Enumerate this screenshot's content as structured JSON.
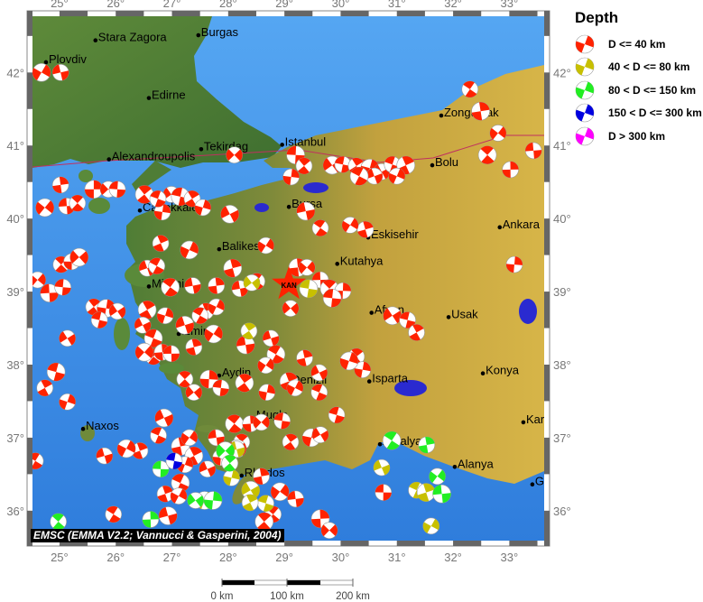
{
  "legend": {
    "title": "Depth",
    "items": [
      {
        "label": "D <= 40 km",
        "color": "#ff2200"
      },
      {
        "label": "40 < D <= 80 km",
        "color": "#c8c000"
      },
      {
        "label": "80 < D <= 150 km",
        "color": "#22ee22"
      },
      {
        "label": "150 < D <= 300 km",
        "color": "#0000e0"
      },
      {
        "label": "D > 300 km",
        "color": "#ff00ff"
      }
    ]
  },
  "credit": "EMSC (EMMA V2.2; Vannucci & Gasperini, 2004)",
  "scale_bar": {
    "labels": [
      "0 km",
      "100 km",
      "200 km"
    ]
  },
  "axes": {
    "lon_ticks": [
      {
        "value": 25,
        "label": "25°"
      },
      {
        "value": 26,
        "label": "26°"
      },
      {
        "value": 27,
        "label": "27°"
      },
      {
        "value": 28,
        "label": "28°"
      },
      {
        "value": 29,
        "label": "29°"
      },
      {
        "value": 30,
        "label": "30°"
      },
      {
        "value": 31,
        "label": "31°"
      },
      {
        "value": 32,
        "label": "32°"
      },
      {
        "value": 33,
        "label": "33°"
      }
    ],
    "lat_ticks": [
      {
        "value": 36,
        "label": "36°"
      },
      {
        "value": 37,
        "label": "37°"
      },
      {
        "value": 38,
        "label": "38°"
      },
      {
        "value": 39,
        "label": "39°"
      },
      {
        "value": 40,
        "label": "40°"
      },
      {
        "value": 41,
        "label": "41°"
      },
      {
        "value": 42,
        "label": "42°"
      }
    ]
  },
  "map": {
    "lon_range": [
      24.52,
      33.62
    ],
    "lat_range": [
      35.59,
      42.77
    ],
    "colors": {
      "sea": "#3d8ee8",
      "lowland": "#4f7d36",
      "highland": "#c9a63e",
      "epicenter": "#ff2200"
    },
    "epicenter": {
      "label": "KAN",
      "lon": 29.08,
      "lat": 39.1
    },
    "cities": [
      {
        "name": "Stara Zagora",
        "lon": 25.64,
        "lat": 42.44
      },
      {
        "name": "Burgas",
        "lon": 27.47,
        "lat": 42.51
      },
      {
        "name": "Plovdiv",
        "lon": 24.76,
        "lat": 42.14
      },
      {
        "name": "Edirne",
        "lon": 26.59,
        "lat": 41.65
      },
      {
        "name": "Zonguldak",
        "lon": 31.79,
        "lat": 41.41
      },
      {
        "name": "Tekirdag",
        "lon": 27.52,
        "lat": 40.95
      },
      {
        "name": "Istanbul",
        "lon": 28.96,
        "lat": 41.01
      },
      {
        "name": "Alexandroupolis",
        "lon": 25.88,
        "lat": 40.81
      },
      {
        "name": "Bolu",
        "lon": 31.63,
        "lat": 40.73
      },
      {
        "name": "Canakkale",
        "lon": 26.43,
        "lat": 40.11
      },
      {
        "name": "Bursa",
        "lon": 29.08,
        "lat": 40.16
      },
      {
        "name": "Ankara",
        "lon": 32.83,
        "lat": 39.88
      },
      {
        "name": "Eskisehir",
        "lon": 30.49,
        "lat": 39.74
      },
      {
        "name": "Balikesir",
        "lon": 27.84,
        "lat": 39.58
      },
      {
        "name": "Kutahya",
        "lon": 29.94,
        "lat": 39.38
      },
      {
        "name": "Mitilini",
        "lon": 26.59,
        "lat": 39.07
      },
      {
        "name": "Afyon",
        "lon": 30.55,
        "lat": 38.71
      },
      {
        "name": "Usak",
        "lon": 31.92,
        "lat": 38.65
      },
      {
        "name": "Izmir",
        "lon": 27.12,
        "lat": 38.42
      },
      {
        "name": "Aydin",
        "lon": 27.84,
        "lat": 37.85
      },
      {
        "name": "Konya",
        "lon": 32.53,
        "lat": 37.88
      },
      {
        "name": "Denizli",
        "lon": 29.08,
        "lat": 37.75
      },
      {
        "name": "Isparta",
        "lon": 30.51,
        "lat": 37.77
      },
      {
        "name": "Naxos",
        "lon": 25.42,
        "lat": 37.12
      },
      {
        "name": "Mugla",
        "lon": 28.45,
        "lat": 37.27
      },
      {
        "name": "Kar",
        "lon": 33.25,
        "lat": 37.21
      },
      {
        "name": "Antalya",
        "lon": 30.7,
        "lat": 36.91
      },
      {
        "name": "Alanya",
        "lon": 32.03,
        "lat": 36.6
      },
      {
        "name": "Rhodos",
        "lon": 28.24,
        "lat": 36.48
      },
      {
        "name": "G",
        "lon": 33.41,
        "lat": 36.36
      }
    ],
    "events": [
      [
        24.68,
        42.0,
        0
      ],
      [
        25.02,
        42.0,
        0
      ],
      [
        32.3,
        41.77,
        0
      ],
      [
        32.49,
        41.47,
        0
      ],
      [
        32.8,
        41.17,
        0
      ],
      [
        33.43,
        40.93,
        0
      ],
      [
        32.61,
        40.87,
        0
      ],
      [
        33.02,
        40.67,
        0
      ],
      [
        28.11,
        40.87,
        0
      ],
      [
        29.2,
        40.87,
        0
      ],
      [
        29.35,
        40.72,
        0
      ],
      [
        29.12,
        40.57,
        0
      ],
      [
        29.85,
        40.73,
        0
      ],
      [
        30.04,
        40.74,
        0
      ],
      [
        30.28,
        40.72,
        0
      ],
      [
        30.52,
        40.69,
        0
      ],
      [
        30.73,
        40.64,
        0
      ],
      [
        30.92,
        40.74,
        0
      ],
      [
        31.16,
        40.73,
        0
      ],
      [
        31.0,
        40.58,
        0
      ],
      [
        30.6,
        40.58,
        0
      ],
      [
        30.33,
        40.58,
        0
      ],
      [
        30.44,
        39.85,
        0
      ],
      [
        30.17,
        39.91,
        0
      ],
      [
        29.38,
        40.1,
        0
      ],
      [
        29.64,
        39.87,
        0
      ],
      [
        25.02,
        40.46,
        0
      ],
      [
        24.74,
        40.15,
        0
      ],
      [
        25.13,
        40.17,
        0
      ],
      [
        25.32,
        40.21,
        0
      ],
      [
        25.61,
        40.4,
        0
      ],
      [
        25.87,
        40.4,
        0
      ],
      [
        26.03,
        40.4,
        0
      ],
      [
        26.51,
        40.33,
        0
      ],
      [
        26.83,
        40.09,
        0
      ],
      [
        26.99,
        40.33,
        0
      ],
      [
        27.15,
        40.3,
        0
      ],
      [
        27.36,
        40.27,
        0
      ],
      [
        27.55,
        40.15,
        0
      ],
      [
        28.03,
        40.06,
        0
      ],
      [
        26.75,
        40.27,
        0
      ],
      [
        26.8,
        39.66,
        0
      ],
      [
        27.31,
        39.57,
        0
      ],
      [
        26.56,
        39.32,
        0
      ],
      [
        26.73,
        39.35,
        0
      ],
      [
        28.08,
        39.32,
        0
      ],
      [
        28.67,
        39.63,
        0
      ],
      [
        27.37,
        39.08,
        0
      ],
      [
        26.97,
        39.06,
        0
      ],
      [
        27.79,
        39.08,
        0
      ],
      [
        24.61,
        39.16,
        0
      ],
      [
        24.82,
        38.98,
        0
      ],
      [
        25.03,
        39.37,
        0
      ],
      [
        25.22,
        39.41,
        0
      ],
      [
        25.35,
        39.47,
        0
      ],
      [
        25.06,
        39.06,
        0
      ],
      [
        25.61,
        38.79,
        0
      ],
      [
        25.83,
        38.77,
        0
      ],
      [
        26.03,
        38.73,
        0
      ],
      [
        25.71,
        38.61,
        0
      ],
      [
        26.56,
        38.75,
        0
      ],
      [
        26.88,
        38.67,
        0
      ],
      [
        26.48,
        38.54,
        0
      ],
      [
        26.67,
        38.36,
        0
      ],
      [
        27.6,
        38.73,
        0
      ],
      [
        27.79,
        38.79,
        0
      ],
      [
        27.23,
        38.54,
        0
      ],
      [
        27.5,
        38.67,
        0
      ],
      [
        27.39,
        38.24,
        0
      ],
      [
        27.74,
        38.42,
        0
      ],
      [
        28.21,
        39.04,
        0
      ],
      [
        28.51,
        39.14,
        0
      ],
      [
        29.24,
        39.33,
        0
      ],
      [
        29.4,
        39.33,
        0
      ],
      [
        29.64,
        39.16,
        0
      ],
      [
        29.8,
        39.04,
        0
      ],
      [
        30.04,
        39.01,
        0
      ],
      [
        29.11,
        38.77,
        0
      ],
      [
        29.85,
        38.91,
        0
      ],
      [
        30.28,
        38.11,
        0
      ],
      [
        30.39,
        37.93,
        0
      ],
      [
        30.92,
        38.67,
        0
      ],
      [
        31.19,
        38.61,
        0
      ],
      [
        31.35,
        38.44,
        0
      ],
      [
        30.15,
        38.05,
        0
      ],
      [
        29.62,
        37.89,
        0
      ],
      [
        29.62,
        37.62,
        0
      ],
      [
        29.08,
        37.77,
        0
      ],
      [
        29.19,
        37.68,
        0
      ],
      [
        28.76,
        38.36,
        0
      ],
      [
        28.85,
        38.14,
        0
      ],
      [
        29.36,
        38.09,
        0
      ],
      [
        28.67,
        37.99,
        0
      ],
      [
        28.31,
        38.27,
        0
      ],
      [
        26.67,
        38.11,
        0
      ],
      [
        26.83,
        38.17,
        0
      ],
      [
        26.51,
        38.17,
        0
      ],
      [
        26.99,
        38.15,
        0
      ],
      [
        27.23,
        37.8,
        0
      ],
      [
        27.66,
        37.8,
        0
      ],
      [
        27.39,
        37.62,
        0
      ],
      [
        27.87,
        37.68,
        0
      ],
      [
        28.29,
        37.75,
        0
      ],
      [
        28.69,
        37.62,
        0
      ],
      [
        25.14,
        38.36,
        0
      ],
      [
        24.94,
        37.9,
        0
      ],
      [
        24.74,
        37.68,
        0
      ],
      [
        25.14,
        37.49,
        0
      ],
      [
        26.86,
        37.27,
        0
      ],
      [
        26.76,
        37.03,
        0
      ],
      [
        26.43,
        36.82,
        0
      ],
      [
        26.19,
        36.85,
        0
      ],
      [
        25.8,
        36.75,
        0
      ],
      [
        24.57,
        36.68,
        0
      ],
      [
        27.15,
        36.88,
        0
      ],
      [
        27.31,
        37.0,
        0
      ],
      [
        27.79,
        37.0,
        0
      ],
      [
        28.11,
        37.19,
        0
      ],
      [
        28.4,
        37.19,
        0
      ],
      [
        28.59,
        37.21,
        0
      ],
      [
        27.95,
        36.82,
        0
      ],
      [
        28.24,
        36.94,
        0
      ],
      [
        27.87,
        36.73,
        0
      ],
      [
        28.16,
        36.85,
        0
      ],
      [
        28.96,
        37.23,
        0
      ],
      [
        29.11,
        36.94,
        0
      ],
      [
        29.48,
        37.0,
        0
      ],
      [
        29.64,
        37.04,
        0
      ],
      [
        29.93,
        37.31,
        0
      ],
      [
        27.39,
        36.75,
        0
      ],
      [
        27.23,
        36.63,
        0
      ],
      [
        27.63,
        36.57,
        0
      ],
      [
        27.15,
        36.38,
        0
      ],
      [
        26.88,
        36.23,
        0
      ],
      [
        27.12,
        36.2,
        0
      ],
      [
        26.93,
        35.93,
        0
      ],
      [
        25.96,
        35.95,
        0
      ],
      [
        28.59,
        36.47,
        0
      ],
      [
        28.92,
        36.26,
        0
      ],
      [
        29.2,
        36.16,
        0
      ],
      [
        28.8,
        35.95,
        0
      ],
      [
        29.64,
        35.89,
        0
      ],
      [
        29.8,
        35.73,
        0
      ],
      [
        30.76,
        36.25,
        0
      ],
      [
        28.64,
        35.85,
        0
      ],
      [
        33.09,
        39.37,
        0
      ],
      [
        28.42,
        39.12,
        1
      ],
      [
        29.43,
        39.04,
        1
      ],
      [
        28.37,
        38.46,
        1
      ],
      [
        28.06,
        36.45,
        1
      ],
      [
        28.4,
        36.28,
        1
      ],
      [
        28.67,
        36.1,
        1
      ],
      [
        28.39,
        36.11,
        1
      ],
      [
        27.58,
        36.14,
        1
      ],
      [
        30.73,
        36.59,
        1
      ],
      [
        31.35,
        36.28,
        1
      ],
      [
        31.52,
        36.25,
        1
      ],
      [
        31.61,
        35.79,
        1
      ],
      [
        28.15,
        36.84,
        1
      ],
      [
        30.91,
        36.96,
        2
      ],
      [
        31.53,
        36.9,
        2
      ],
      [
        31.72,
        36.47,
        2
      ],
      [
        31.8,
        36.23,
        2
      ],
      [
        24.98,
        35.85,
        2
      ],
      [
        26.62,
        35.88,
        2
      ],
      [
        27.95,
        36.82,
        2
      ],
      [
        26.8,
        36.57,
        2
      ],
      [
        28.03,
        36.65,
        2
      ],
      [
        27.73,
        36.14,
        2
      ],
      [
        27.42,
        36.14,
        2
      ],
      [
        27.04,
        36.68,
        3
      ]
    ]
  }
}
